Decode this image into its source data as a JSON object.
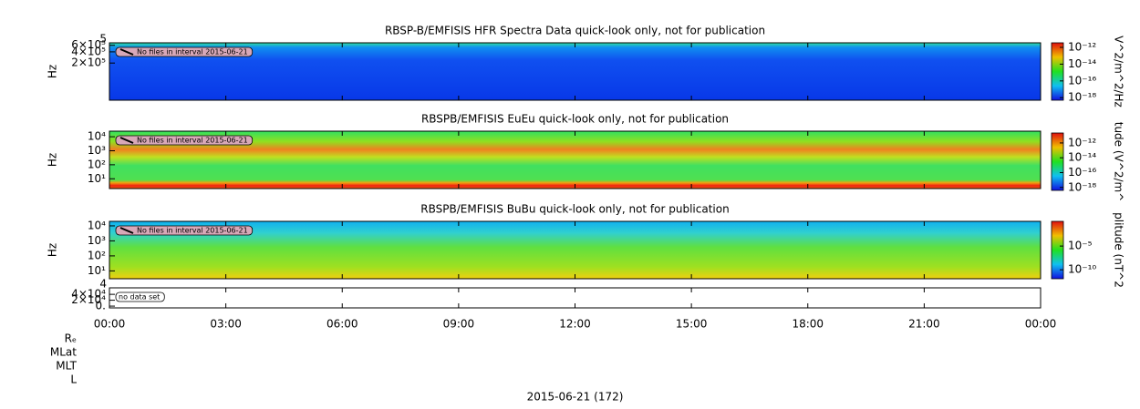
{
  "chart_data": [
    {
      "type": "spectrogram",
      "title": "RBSP-B/EMFISIS  HFR Spectra Data quick-look only, not for publication",
      "ylabel": "Hz",
      "log": true,
      "ylim": [
        20000,
        700000
      ],
      "yticks": [
        {
          "value": 600000,
          "label": "6×10⁵"
        },
        {
          "value": 400000,
          "label": "4×10⁵"
        },
        {
          "value": 200000,
          "label": "2×10⁵"
        }
      ],
      "clipped_tick_label": "5",
      "annotation": "No files in interval 2015-06-21",
      "colorbar": {
        "label": "V^2/m^2/Hz",
        "log": true,
        "clim": [
          5e-19,
          3.5e-12
        ],
        "ticks": [
          {
            "value": 1e-12,
            "label": "10⁻¹²"
          },
          {
            "value": 1e-14,
            "label": "10⁻¹⁴"
          },
          {
            "value": 1e-16,
            "label": "10⁻¹⁶"
          },
          {
            "value": 1e-18,
            "label": "10⁻¹⁸"
          }
        ]
      }
    },
    {
      "type": "spectrogram",
      "title": "RBSPB/EMFISIS  EuEu quick-look only, not for publication",
      "ylabel": "Hz",
      "log": true,
      "ylim": [
        2,
        25000
      ],
      "yticks": [
        {
          "value": 10000,
          "label": "10⁴"
        },
        {
          "value": 1000,
          "label": "10³"
        },
        {
          "value": 100,
          "label": "10²"
        },
        {
          "value": 10,
          "label": "10¹"
        }
      ],
      "annotation": "No files in interval 2015-06-21",
      "colorbar": {
        "label": "tude (V^2/m^",
        "log": true,
        "clim": [
          4e-19,
          2.2e-11
        ],
        "ticks": [
          {
            "value": 1e-12,
            "label": "10⁻¹²"
          },
          {
            "value": 1e-14,
            "label": "10⁻¹⁴"
          },
          {
            "value": 1e-16,
            "label": "10⁻¹⁶"
          },
          {
            "value": 1e-18,
            "label": "10⁻¹⁸"
          }
        ]
      }
    },
    {
      "type": "spectrogram",
      "title": "RBSPB/EMFISIS  BuBu quick-look only, not for publication",
      "ylabel": "Hz",
      "log": true,
      "ylim": [
        3,
        20000
      ],
      "yticks": [
        {
          "value": 10000,
          "label": "10⁴"
        },
        {
          "value": 1000,
          "label": "10³"
        },
        {
          "value": 100,
          "label": "10²"
        },
        {
          "value": 10,
          "label": "10¹"
        }
      ],
      "annotation": "No files in interval 2015-06-21",
      "colorbar": {
        "label": "plitude (nT^2",
        "log": true,
        "clim": [
          1.3e-12,
          1.6
        ],
        "ticks": [
          {
            "value": 1e-05,
            "label": "10⁻⁵"
          },
          {
            "value": 1e-10,
            "label": "10⁻¹⁰"
          }
        ]
      }
    },
    {
      "type": "empty",
      "log": false,
      "ylim": [
        -6000,
        62000
      ],
      "yticks": [
        {
          "value": 40000,
          "label": "4×10⁴"
        },
        {
          "value": 20000,
          "label": "2×10⁴"
        },
        {
          "value": 0,
          "label": "0."
        }
      ],
      "clipped_tick_label": "4",
      "annotation": "no data set"
    }
  ],
  "x_axis": {
    "xlim": [
      0,
      24
    ],
    "xticks": [
      {
        "value": 0,
        "label": "00:00"
      },
      {
        "value": 3,
        "label": "03:00"
      },
      {
        "value": 6,
        "label": "06:00"
      },
      {
        "value": 9,
        "label": "09:00"
      },
      {
        "value": 12,
        "label": "12:00"
      },
      {
        "value": 15,
        "label": "15:00"
      },
      {
        "value": 18,
        "label": "18:00"
      },
      {
        "value": 21,
        "label": "21:00"
      },
      {
        "value": 24,
        "label": "00:00"
      }
    ],
    "ephemeris_labels": [
      "Rₑ",
      "MLat",
      "MLT",
      "L"
    ],
    "xlabel": "2015-06-21 (172)"
  }
}
